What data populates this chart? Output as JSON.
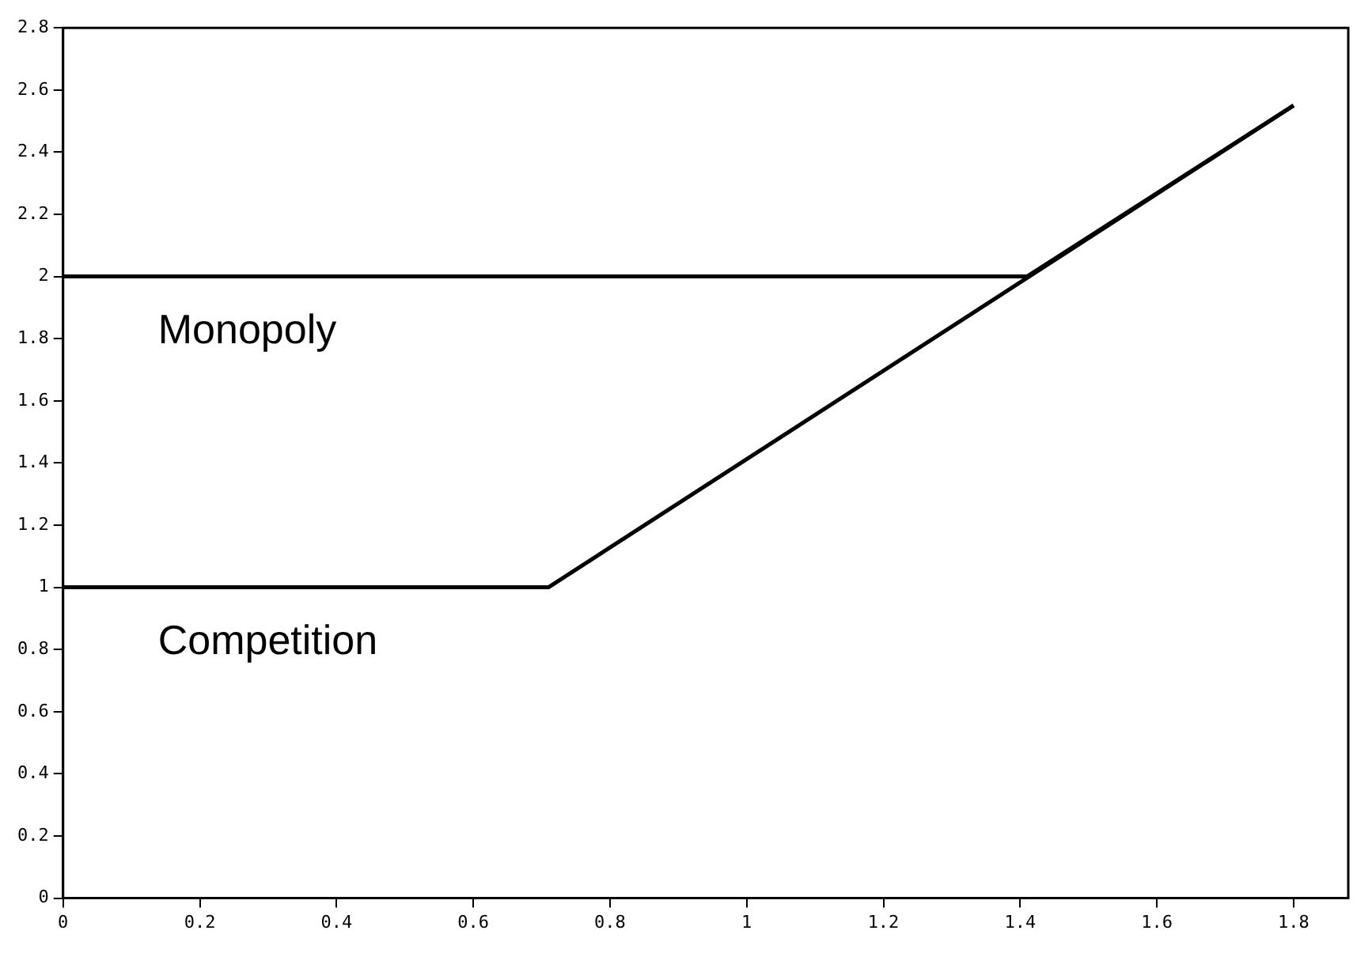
{
  "chart_data": {
    "type": "line",
    "xlim": [
      0,
      1.88
    ],
    "xticks": [
      0,
      0.2,
      0.4,
      0.6,
      0.8,
      1,
      1.2,
      1.4,
      1.6,
      1.8
    ],
    "ylim": [
      0,
      2.8
    ],
    "yticks": [
      0,
      0.2,
      0.4,
      0.6,
      0.8,
      1,
      1.2,
      1.4,
      1.6,
      1.8,
      2,
      2.2,
      2.4,
      2.6,
      2.8
    ],
    "grid": false,
    "legend": false,
    "marker": "none",
    "line_style": "solid",
    "series": [
      {
        "name": "Monopoly",
        "color": "#000000",
        "x": [
          0,
          1.41,
          1.8
        ],
        "values": [
          2,
          2,
          2.55
        ]
      },
      {
        "name": "Competition",
        "color": "#000000",
        "x": [
          0,
          0.71,
          1.8
        ],
        "values": [
          1,
          1,
          2.55
        ]
      }
    ]
  }
}
